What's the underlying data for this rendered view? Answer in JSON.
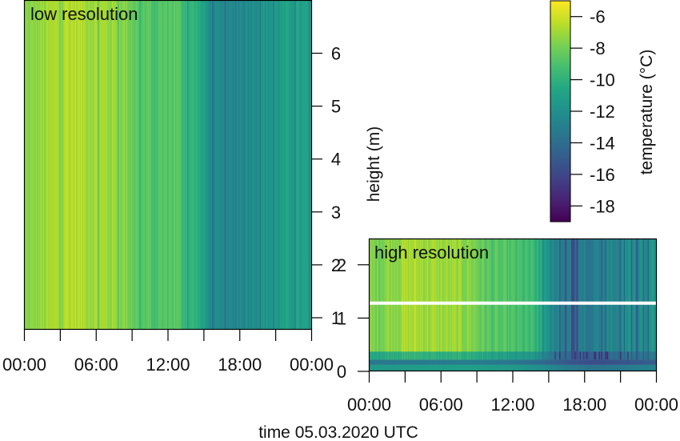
{
  "chart_data": {
    "type": "heatmap",
    "title": "",
    "xlabel": "time 05.03.2020 UTC",
    "ylabel": "height (m)",
    "colorbar": {
      "label": "temperature (°C)",
      "colormap": "viridis",
      "range": [
        -19,
        -5
      ],
      "ticks": [
        -6,
        -8,
        -10,
        -12,
        -14,
        -16,
        -18
      ],
      "tick_labels": [
        "-6",
        "-8",
        "-10",
        "-12",
        "-14",
        "-16",
        "-18"
      ]
    },
    "x_tick_labels": [
      "00:00",
      "06:00",
      "12:00",
      "18:00",
      "00:00"
    ],
    "x_ticks_hours": [
      0,
      3,
      6,
      9,
      12,
      15,
      18,
      21,
      24
    ],
    "x_range_hours": [
      0,
      24
    ],
    "panels": [
      {
        "name": "low resolution",
        "y_range": [
          0.8,
          7.0
        ],
        "y_ticks": [
          1,
          2,
          3,
          4,
          5,
          6
        ],
        "y_tick_labels": [
          "1",
          "2",
          "3",
          "4",
          "5",
          "6"
        ],
        "hourly_mean_temperature": [
          -7.6,
          -7.2,
          -6.9,
          -6.5,
          -6.6,
          -6.9,
          -7.0,
          -7.2,
          -7.6,
          -8.6,
          -8.8,
          -8.9,
          -8.5,
          -9.6,
          -10.2,
          -12.2,
          -12.8,
          -12.6,
          -12.2,
          -11.8,
          -11.6,
          -11.3,
          -11.0,
          -11.2
        ]
      },
      {
        "name": "high resolution",
        "y_range": [
          0,
          2.5
        ],
        "y_ticks": [
          0,
          1,
          2
        ],
        "y_tick_labels": [
          "0",
          "1",
          "2"
        ],
        "hourly_mean_temperature": [
          -7.8,
          -7.4,
          -7.1,
          -6.8,
          -6.9,
          -7.1,
          -7.2,
          -7.3,
          -7.5,
          -8.4,
          -8.9,
          -9.0,
          -9.3,
          -9.6,
          -10.6,
          -12.6,
          -13.4,
          -13.2,
          -12.9,
          -12.6,
          -12.4,
          -12.1,
          -11.9,
          -12.0
        ],
        "surface_layer": {
          "top_height_m": 0.22,
          "hourly_mean_temperature": [
            -12.6,
            -12.6,
            -12.5,
            -12.5,
            -12.4,
            -12.4,
            -12.4,
            -12.3,
            -12.3,
            -12.4,
            -12.5,
            -12.6,
            -12.8,
            -13.0,
            -13.3,
            -13.8,
            -14.3,
            -14.6,
            -14.8,
            -14.8,
            -14.6,
            -14.4,
            -14.2,
            -14.0
          ],
          "coldest_streaks_temperature": -17.5
        },
        "marker_line": {
          "height_m": 1.28,
          "color": "#ffffff"
        }
      }
    ]
  }
}
